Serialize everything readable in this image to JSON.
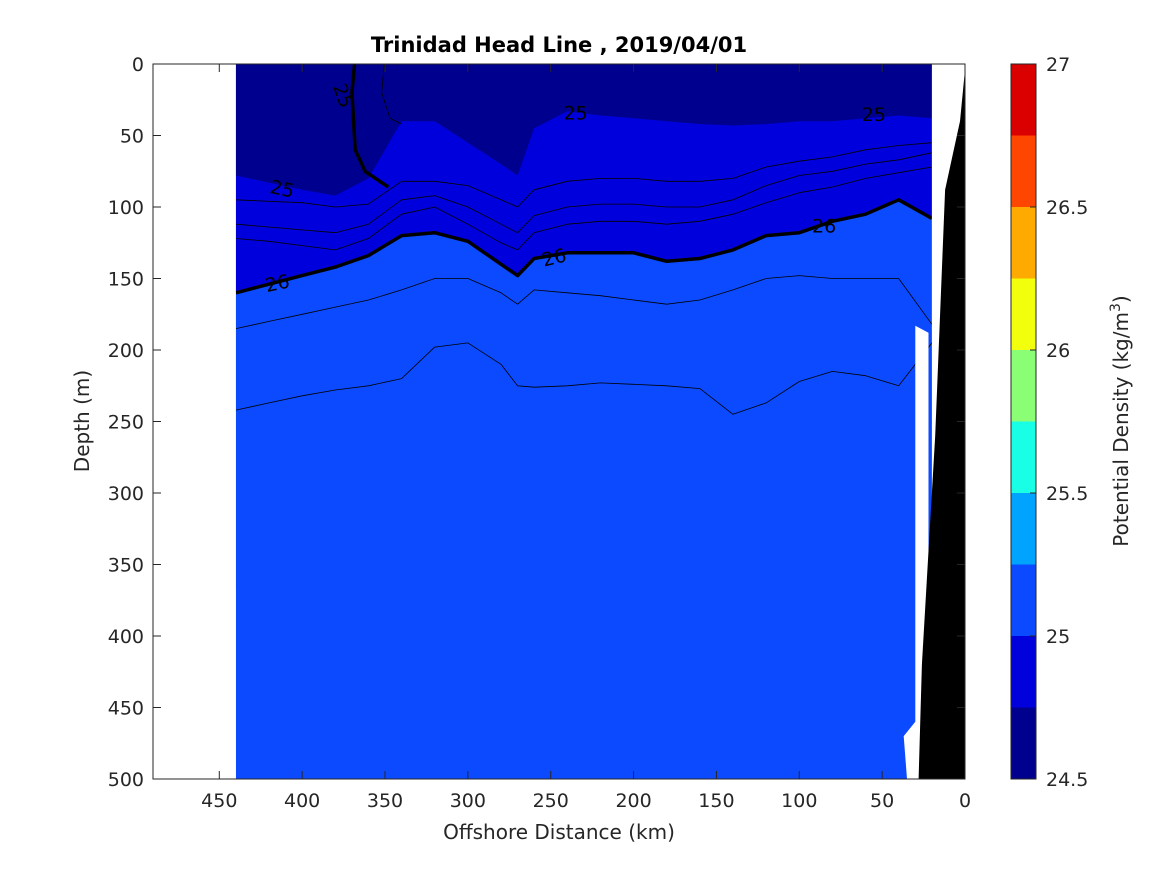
{
  "chart_data": {
    "type": "contour",
    "title": "Trinidad Head Line , 2019/04/01",
    "xlabel": "Offshore Distance (km)",
    "ylabel": "Depth (m)",
    "xlim": [
      490,
      0
    ],
    "ylim": [
      0,
      500
    ],
    "x_ticks": [
      450,
      400,
      350,
      300,
      250,
      200,
      150,
      100,
      50,
      0
    ],
    "y_ticks": [
      0,
      50,
      100,
      150,
      200,
      250,
      300,
      350,
      400,
      450,
      500
    ],
    "colorbar": {
      "label_main": "Potential Density (kg/m",
      "label_sup": "3",
      "label_close": ")",
      "range": [
        24.5,
        27
      ],
      "ticks": [
        24.5,
        25,
        25.5,
        26,
        26.5,
        27
      ],
      "levels": [
        24.5,
        24.75,
        25,
        25.25,
        25.5,
        25.75,
        26,
        26.25,
        26.5,
        26.75,
        27
      ],
      "colors": [
        "#00008F",
        "#0000DD",
        "#0B4AFF",
        "#00A4FF",
        "#19FFE6",
        "#8AFF75",
        "#F2FF0D",
        "#FFAA00",
        "#FF4600",
        "#DB0000"
      ]
    },
    "labeled_contours": [
      25,
      26
    ],
    "contour_labels": [
      {
        "text": "25",
        "x": 375,
        "y": 22
      },
      {
        "text": "25",
        "x": 412,
        "y": 87
      },
      {
        "text": "25",
        "x": 235,
        "y": 34
      },
      {
        "text": "25",
        "x": 55,
        "y": 35
      },
      {
        "text": "26",
        "x": 415,
        "y": 153
      },
      {
        "text": "26",
        "x": 248,
        "y": 135
      },
      {
        "text": "26",
        "x": 85,
        "y": 113
      }
    ],
    "data_extent_km": [
      440,
      20
    ],
    "bathymetry_color": "#000000"
  }
}
